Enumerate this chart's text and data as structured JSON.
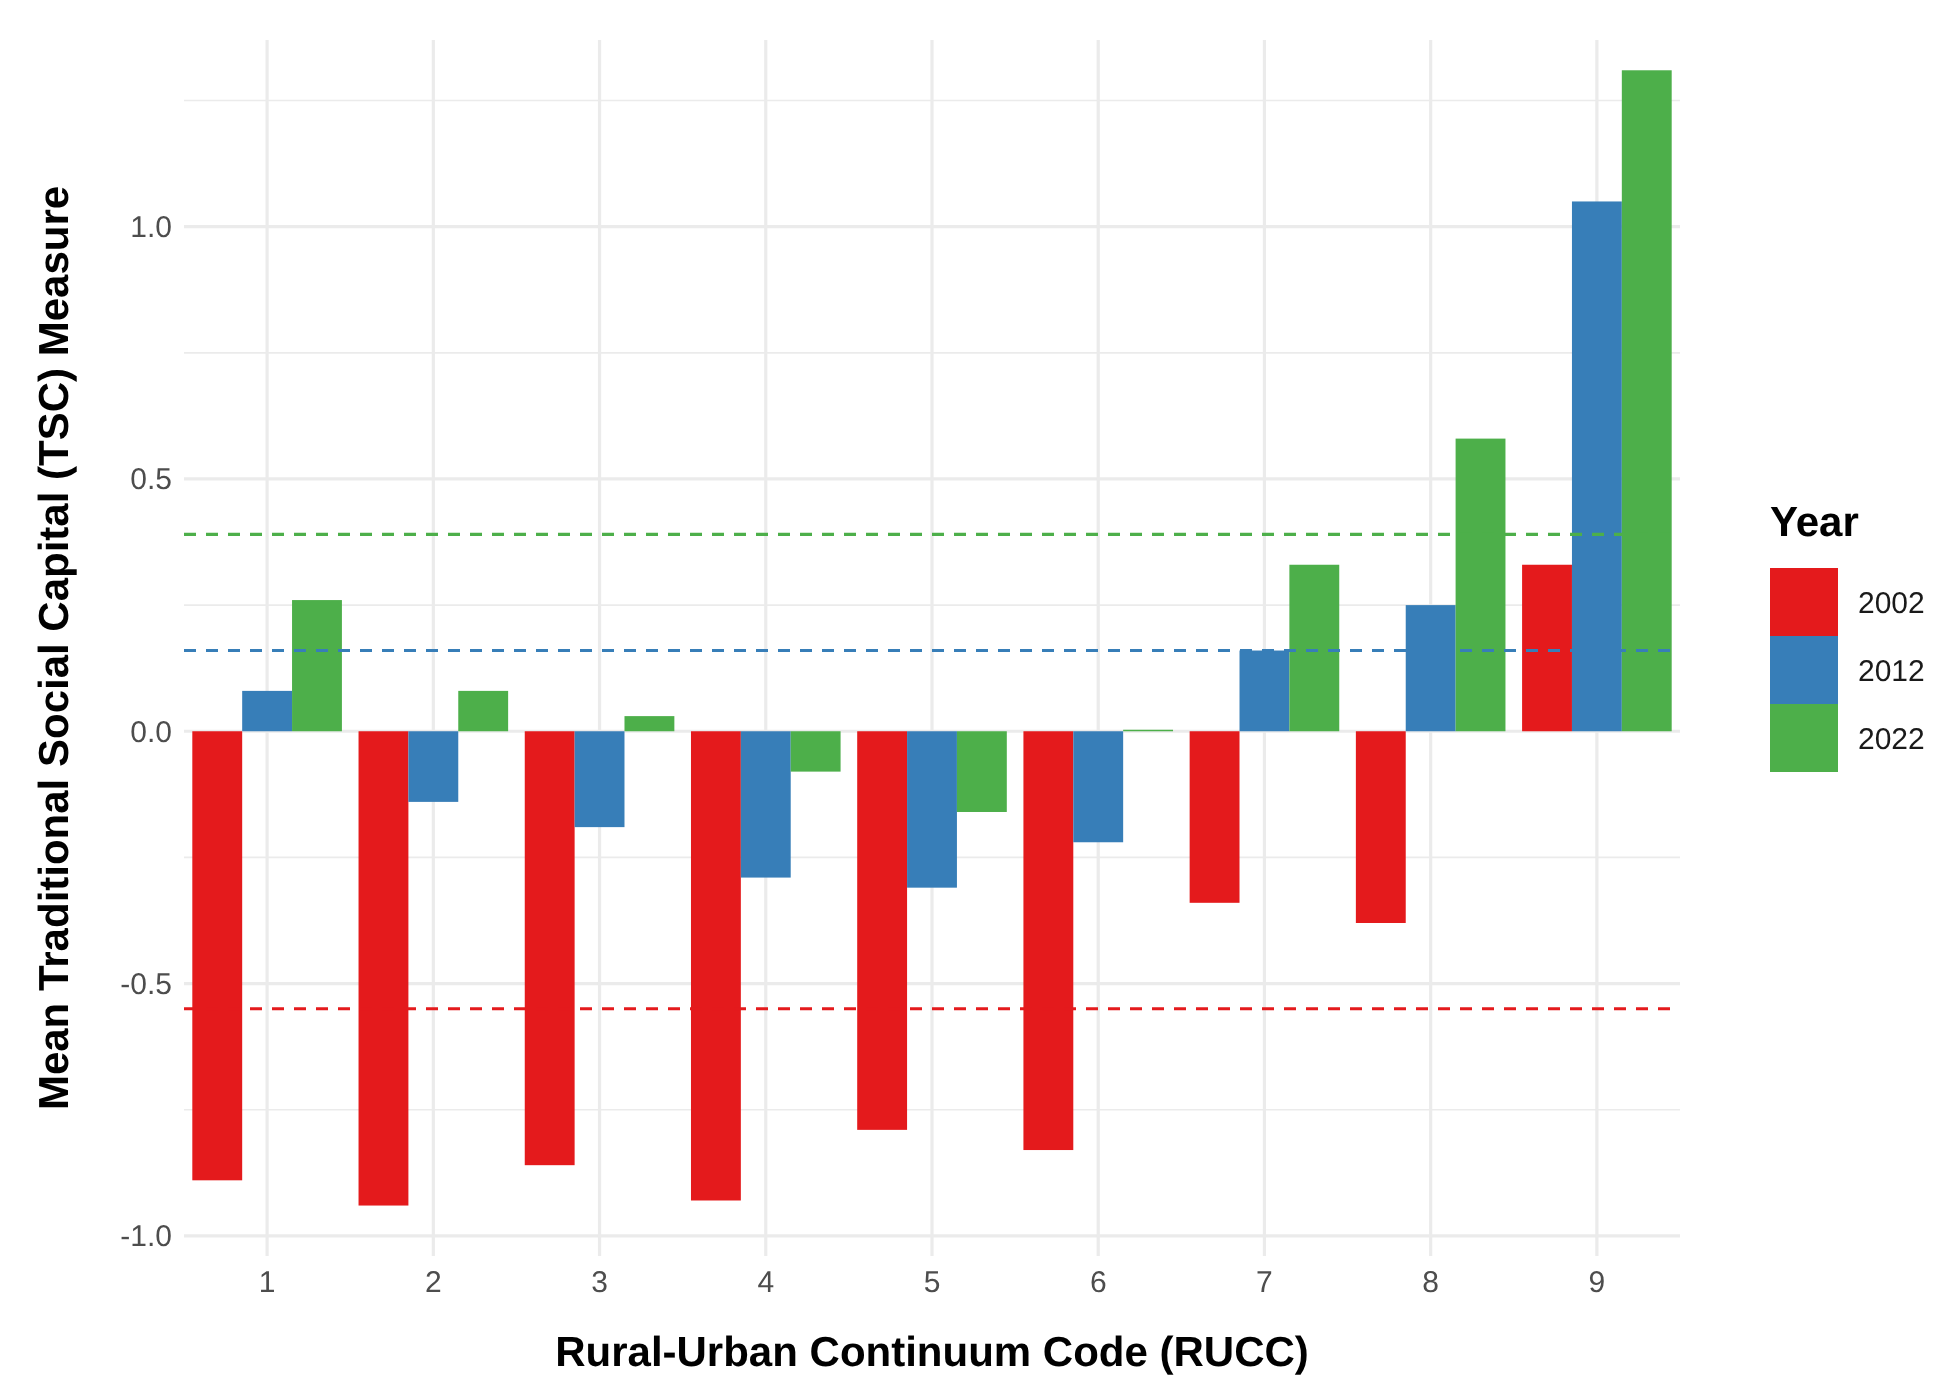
{
  "chart_data": {
    "type": "bar",
    "xlabel": "Rural-Urban Continuum Code (RUCC)",
    "ylabel": "Mean Traditional Social Capital (TSC) Measure",
    "legend_title": "Year",
    "categories": [
      "1",
      "2",
      "3",
      "4",
      "5",
      "6",
      "7",
      "8",
      "9"
    ],
    "series": [
      {
        "name": "2002",
        "color": "#e41a1c",
        "values": [
          -0.89,
          -0.94,
          -0.86,
          -0.93,
          -0.79,
          -0.83,
          -0.34,
          -0.38,
          0.33
        ]
      },
      {
        "name": "2012",
        "color": "#377eb8",
        "values": [
          0.08,
          -0.14,
          -0.19,
          -0.29,
          -0.31,
          -0.22,
          0.16,
          0.25,
          1.05
        ]
      },
      {
        "name": "2022",
        "color": "#4daf4a",
        "values": [
          0.26,
          0.08,
          0.03,
          -0.08,
          -0.16,
          0.003,
          0.33,
          0.58,
          1.31
        ]
      }
    ],
    "ylim": [
      -1.04,
      1.37
    ],
    "yticks": [
      {
        "value": -1,
        "label": "-1.0"
      },
      {
        "value": -0.75,
        "label": null
      },
      {
        "value": -0.5,
        "label": "-0.5"
      },
      {
        "value": -0.25,
        "label": null
      },
      {
        "value": 0,
        "label": "0.0"
      },
      {
        "value": 0.25,
        "label": null
      },
      {
        "value": 0.5,
        "label": "0.5"
      },
      {
        "value": 0.75,
        "label": null
      },
      {
        "value": 1,
        "label": "1.0"
      },
      {
        "value": 1.25,
        "label": null
      }
    ],
    "ref_lines": [
      {
        "axis": "y",
        "value": -0.55,
        "color": "#e41a1c",
        "line_style": "dashed"
      },
      {
        "axis": "y",
        "value": 0.16,
        "color": "#377eb8",
        "line_style": "dashed"
      },
      {
        "axis": "y",
        "value": 0.39,
        "color": "#4daf4a",
        "line_style": "dashed"
      }
    ],
    "grid": true,
    "legend": "right"
  }
}
